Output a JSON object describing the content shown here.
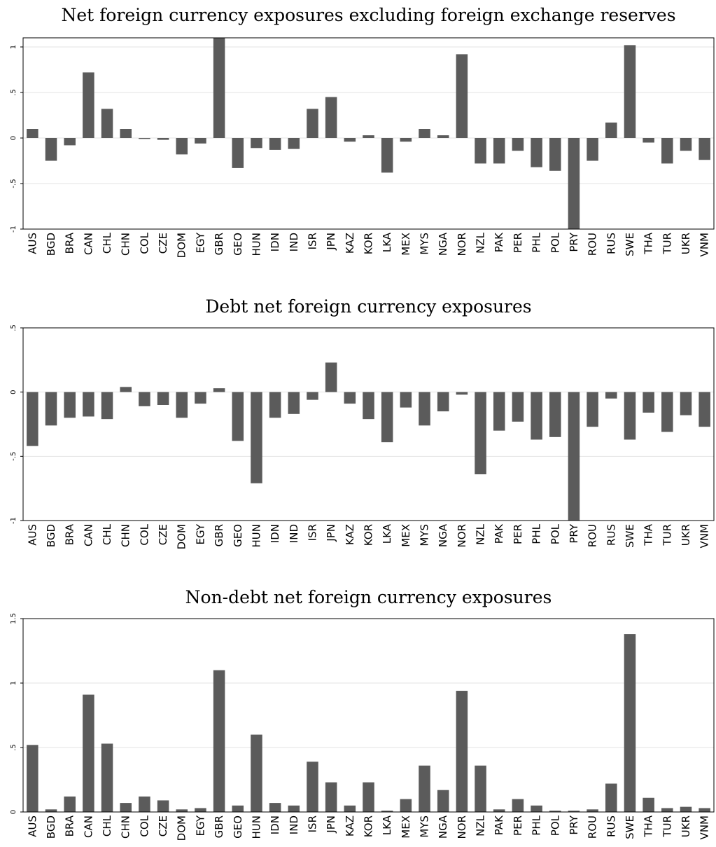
{
  "chart_data": [
    {
      "type": "bar",
      "title": "Net foreign currency exposures excluding foreign exchange reserves",
      "xlabel": "",
      "ylabel": "",
      "ylim": [
        -1,
        1.1
      ],
      "yticks": [
        -1,
        -0.5,
        0,
        0.5,
        1
      ],
      "ytick_labels": [
        "-1",
        "-.5",
        "0",
        ".5",
        "1"
      ],
      "grid": true,
      "bar_color": "#5b5b5b",
      "categories": [
        "AUS",
        "BGD",
        "BRA",
        "CAN",
        "CHL",
        "CHN",
        "COL",
        "CZE",
        "DOM",
        "EGY",
        "GBR",
        "GEO",
        "HUN",
        "IDN",
        "IND",
        "ISR",
        "JPN",
        "KAZ",
        "KOR",
        "LKA",
        "MEX",
        "MYS",
        "NGA",
        "NOR",
        "NZL",
        "PAK",
        "PER",
        "PHL",
        "POL",
        "PRY",
        "ROU",
        "RUS",
        "SWE",
        "THA",
        "TUR",
        "UKR",
        "VNM"
      ],
      "values": [
        0.1,
        -0.25,
        -0.08,
        0.72,
        0.32,
        0.1,
        -0.01,
        -0.02,
        -0.18,
        -0.06,
        1.13,
        -0.33,
        -0.11,
        -0.13,
        -0.12,
        0.32,
        0.45,
        -0.04,
        0.03,
        -0.38,
        -0.04,
        0.1,
        0.03,
        0.92,
        -0.28,
        -0.28,
        -0.14,
        -0.32,
        -0.36,
        -1.0,
        -0.25,
        0.17,
        1.02,
        -0.05,
        -0.28,
        -0.14,
        -0.24
      ]
    },
    {
      "type": "bar",
      "title": "Debt net foreign currency exposures",
      "xlabel": "",
      "ylabel": "",
      "ylim": [
        -1,
        0.5
      ],
      "yticks": [
        -1,
        -0.5,
        0,
        0.5
      ],
      "ytick_labels": [
        "-1",
        "-.5",
        "0",
        ".5"
      ],
      "grid": true,
      "bar_color": "#5b5b5b",
      "categories": [
        "AUS",
        "BGD",
        "BRA",
        "CAN",
        "CHL",
        "CHN",
        "COL",
        "CZE",
        "DOM",
        "EGY",
        "GBR",
        "GEO",
        "HUN",
        "IDN",
        "IND",
        "ISR",
        "JPN",
        "KAZ",
        "KOR",
        "LKA",
        "MEX",
        "MYS",
        "NGA",
        "NOR",
        "NZL",
        "PAK",
        "PER",
        "PHL",
        "POL",
        "PRY",
        "ROU",
        "RUS",
        "SWE",
        "THA",
        "TUR",
        "UKR",
        "VNM"
      ],
      "values": [
        -0.42,
        -0.26,
        -0.2,
        -0.19,
        -0.21,
        0.04,
        -0.11,
        -0.1,
        -0.2,
        -0.09,
        0.03,
        -0.38,
        -0.71,
        -0.2,
        -0.17,
        -0.06,
        0.23,
        -0.09,
        -0.21,
        -0.39,
        -0.12,
        -0.26,
        -0.15,
        -0.02,
        -0.64,
        -0.3,
        -0.23,
        -0.37,
        -0.35,
        -1.0,
        -0.27,
        -0.05,
        -0.37,
        -0.16,
        -0.31,
        -0.18,
        -0.27
      ]
    },
    {
      "type": "bar",
      "title": "Non-debt net foreign currency exposures",
      "xlabel": "",
      "ylabel": "",
      "ylim": [
        0,
        1.5
      ],
      "yticks": [
        0,
        0.5,
        1,
        1.5
      ],
      "ytick_labels": [
        "0",
        ".5",
        "1",
        "1.5"
      ],
      "grid": true,
      "bar_color": "#5b5b5b",
      "categories": [
        "AUS",
        "BGD",
        "BRA",
        "CAN",
        "CHL",
        "CHN",
        "COL",
        "CZE",
        "DOM",
        "EGY",
        "GBR",
        "GEO",
        "HUN",
        "IDN",
        "IND",
        "ISR",
        "JPN",
        "KAZ",
        "KOR",
        "LKA",
        "MEX",
        "MYS",
        "NGA",
        "NOR",
        "NZL",
        "PAK",
        "PER",
        "PHL",
        "POL",
        "PRY",
        "ROU",
        "RUS",
        "SWE",
        "THA",
        "TUR",
        "UKR",
        "VNM"
      ],
      "values": [
        0.52,
        0.02,
        0.12,
        0.91,
        0.53,
        0.07,
        0.12,
        0.09,
        0.02,
        0.03,
        1.1,
        0.05,
        0.6,
        0.07,
        0.05,
        0.39,
        0.23,
        0.05,
        0.23,
        0.01,
        0.1,
        0.36,
        0.17,
        0.94,
        0.36,
        0.02,
        0.1,
        0.05,
        0.01,
        0.01,
        0.02,
        0.22,
        1.38,
        0.11,
        0.03,
        0.04,
        0.03
      ]
    }
  ]
}
